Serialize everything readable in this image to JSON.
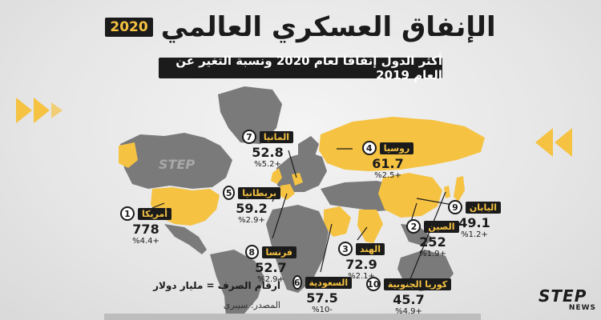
{
  "title": "الإنفاق العسكري العالمي",
  "year_tag": "2020",
  "subtitle": "أكثر الدول إنفاقا لعام 2020 ونسبة التغير عن العام 2019",
  "colors": {
    "accent": "#f5c242",
    "land": "#7a7a7a",
    "dark": "#1b1b1b",
    "background": "#e9e9e9"
  },
  "countries": [
    {
      "rank": "1",
      "name": "أمريكا",
      "value": "778",
      "change": "%4.4+"
    },
    {
      "rank": "2",
      "name": "الصين",
      "value": "252",
      "change": "%1.9+"
    },
    {
      "rank": "3",
      "name": "الهند",
      "value": "72.9",
      "change": "%2.1+"
    },
    {
      "rank": "4",
      "name": "روسيا",
      "value": "61.7",
      "change": "%2.5+"
    },
    {
      "rank": "5",
      "name": "بريطانيا",
      "value": "59.2",
      "change": "%2.9+"
    },
    {
      "rank": "6",
      "name": "السعودية",
      "value": "57.5",
      "change": "%10-"
    },
    {
      "rank": "7",
      "name": "المانيا",
      "value": "52.8",
      "change": "%5.2+"
    },
    {
      "rank": "8",
      "name": "فرنسا",
      "value": "52.7",
      "change": "%2.9+"
    },
    {
      "rank": "9",
      "name": "اليابان",
      "value": "49.1",
      "change": "%1.2+"
    },
    {
      "rank": "10",
      "name": "كوريا الجنوبية",
      "value": "45.7",
      "change": "%4.9+"
    }
  ],
  "note": "أرقام الصرف = مليار دولار",
  "source": "المصدر: سيبري",
  "logo": {
    "main": "STEP",
    "sub": "NEWS",
    "watermark": "STEP"
  },
  "icons": {
    "left_decoration": "double-chevron-right-icon",
    "right_decoration": "double-chevron-left-icon"
  }
}
